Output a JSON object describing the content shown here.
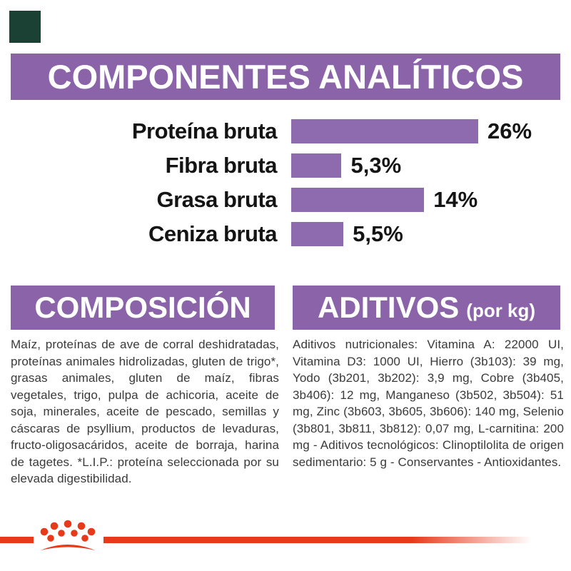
{
  "title_bar": {
    "text": "COMPONENTES ANALÍTICOS"
  },
  "chart_data": {
    "type": "bar",
    "orientation": "horizontal",
    "categories": [
      "Proteína bruta",
      "Fibra bruta",
      "Grasa bruta",
      "Ceniza bruta"
    ],
    "values": [
      26,
      5.3,
      14,
      5.5
    ],
    "value_labels": [
      "26%",
      "5,3%",
      "14%",
      "5,5%"
    ],
    "unit": "%",
    "bar_color": "#8e6bae",
    "xlim": [
      0,
      30
    ],
    "grid": false,
    "legend": false
  },
  "composition": {
    "title": "COMPOSICIÓN",
    "body": "Maíz, proteínas de ave de corral deshidratadas, proteínas animales hidrolizadas, gluten de trigo*, grasas animales, gluten de maíz, fibras vegetales, trigo, pulpa de achicoria, aceite de soja, minerales, aceite de pescado, semillas y cáscaras de psyllium, productos de levaduras, fructo-oligosacáridos, aceite de borraja, harina de tagetes. *L.I.P.: proteína seleccionada por su elevada digestibilidad."
  },
  "additives": {
    "title": "ADITIVOS",
    "subtitle": "(por kg)",
    "body": "Aditivos nutricionales: Vitamina A: 22000 UI, Vitamina D3: 1000 UI, Hierro (3b103): 39 mg, Yodo (3b201, 3b202): 3,9 mg, Cobre (3b405, 3b406): 12 mg, Manganeso (3b502, 3b504): 51 mg, Zinc (3b603, 3b605, 3b606): 140 mg, Selenio (3b801, 3b811, 3b812): 0,07 mg, L-carnitina: 200 mg - Aditivos tecnológicos: Clinoptilolita de origen sedimentario: 5 g - Conservantes - Antioxidantes."
  },
  "colors": {
    "header_purple": "#8a63a8",
    "bar_purple": "#8e6bae",
    "brand_red": "#e8391b",
    "corner_green": "#1b4034"
  },
  "footer": {
    "logo": "royal-canin-crown-logo"
  }
}
